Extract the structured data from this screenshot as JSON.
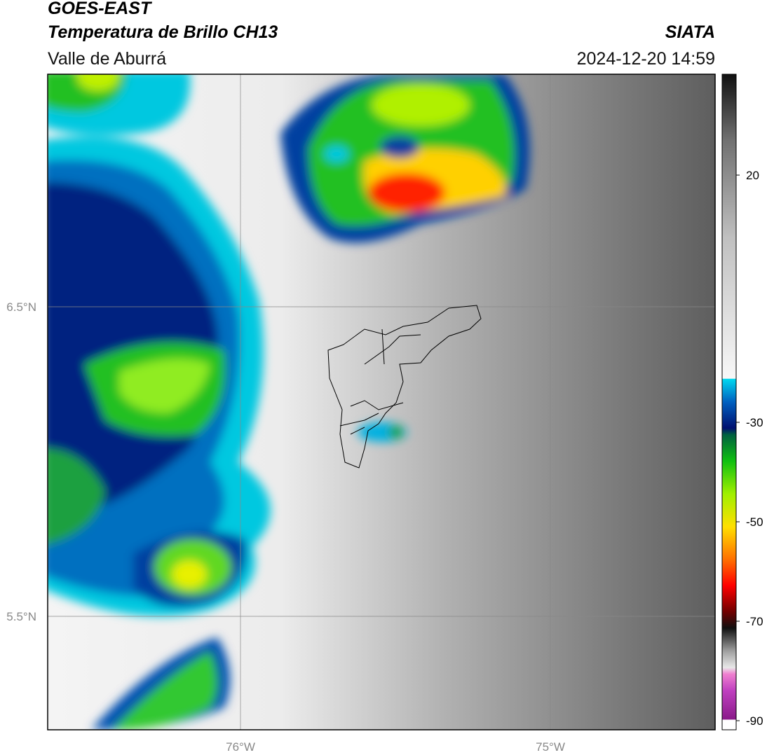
{
  "header": {
    "title": "GOES-EAST",
    "subtitle": "Temperatura de Brillo CH13",
    "region": "Valle de Aburrá",
    "source": "SIATA",
    "datetime": "2024-12-20 14:59"
  },
  "map": {
    "lat_labels": [
      "6.5°N",
      "5.5°N"
    ],
    "lon_labels": [
      "76°W",
      "75°W"
    ]
  },
  "colorbar": {
    "ticks": [
      20,
      -30,
      -50,
      -70,
      -90
    ]
  }
}
